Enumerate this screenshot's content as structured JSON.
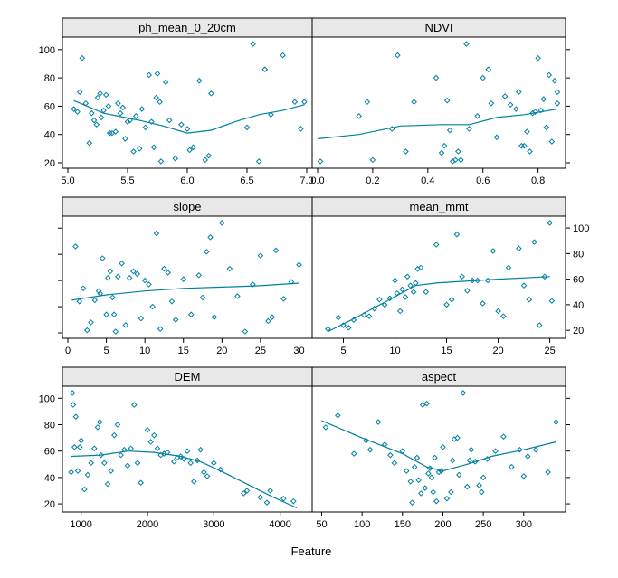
{
  "figure": {
    "xlabel": "Feature",
    "colors": {
      "points": "#0080a0",
      "smooth": "#0080a0",
      "strip": "#e8e8e8",
      "frame": "#000000"
    }
  },
  "chart_data": [
    {
      "type": "scatter",
      "title": "ph_mean_0_20cm",
      "xlim": [
        5.0,
        7.0
      ],
      "ylim": [
        20,
        105
      ],
      "x_ticks": [
        "5.0",
        "5.5",
        "6.0",
        "6.5",
        "7.0"
      ],
      "y_ticks": [
        "20",
        "40",
        "60",
        "80",
        "100"
      ],
      "points": [
        [
          5.05,
          58
        ],
        [
          5.08,
          56
        ],
        [
          5.1,
          70
        ],
        [
          5.12,
          94
        ],
        [
          5.15,
          62
        ],
        [
          5.18,
          34
        ],
        [
          5.2,
          55
        ],
        [
          5.22,
          50
        ],
        [
          5.24,
          47
        ],
        [
          5.25,
          66
        ],
        [
          5.27,
          69
        ],
        [
          5.28,
          52
        ],
        [
          5.3,
          57
        ],
        [
          5.32,
          68
        ],
        [
          5.34,
          60
        ],
        [
          5.35,
          41
        ],
        [
          5.37,
          41
        ],
        [
          5.4,
          42
        ],
        [
          5.42,
          62
        ],
        [
          5.44,
          55
        ],
        [
          5.46,
          59
        ],
        [
          5.48,
          37
        ],
        [
          5.5,
          49
        ],
        [
          5.52,
          50
        ],
        [
          5.55,
          28
        ],
        [
          5.57,
          53
        ],
        [
          5.6,
          30
        ],
        [
          5.62,
          58
        ],
        [
          5.65,
          45
        ],
        [
          5.68,
          82
        ],
        [
          5.7,
          49
        ],
        [
          5.72,
          31
        ],
        [
          5.74,
          66
        ],
        [
          5.75,
          83
        ],
        [
          5.77,
          63
        ],
        [
          5.78,
          21
        ],
        [
          5.82,
          77
        ],
        [
          5.85,
          50
        ],
        [
          5.9,
          23
        ],
        [
          5.95,
          47
        ],
        [
          6.0,
          44
        ],
        [
          6.02,
          29
        ],
        [
          6.05,
          31
        ],
        [
          6.1,
          78
        ],
        [
          6.15,
          22
        ],
        [
          6.18,
          25
        ],
        [
          6.2,
          69
        ],
        [
          6.5,
          45
        ],
        [
          6.55,
          104
        ],
        [
          6.6,
          21
        ],
        [
          6.65,
          86
        ],
        [
          6.7,
          54
        ],
        [
          6.8,
          96
        ],
        [
          6.9,
          63
        ],
        [
          6.95,
          44
        ],
        [
          6.98,
          63
        ]
      ],
      "smooth": [
        [
          5.05,
          64
        ],
        [
          5.3,
          55
        ],
        [
          5.6,
          50
        ],
        [
          5.8,
          46
        ],
        [
          6.0,
          41
        ],
        [
          6.2,
          43
        ],
        [
          6.4,
          49
        ],
        [
          6.6,
          54
        ],
        [
          6.8,
          57
        ],
        [
          6.98,
          61
        ]
      ]
    },
    {
      "type": "scatter",
      "title": "NDVI",
      "xlim": [
        0.0,
        0.88
      ],
      "ylim": [
        20,
        105
      ],
      "x_ticks": [
        "0.0",
        "0.2",
        "0.4",
        "0.6",
        "0.8"
      ],
      "y_ticks": [
        "20",
        "40",
        "60",
        "80",
        "100"
      ],
      "points": [
        [
          0.01,
          21
        ],
        [
          0.15,
          53
        ],
        [
          0.18,
          63
        ],
        [
          0.2,
          22
        ],
        [
          0.27,
          44
        ],
        [
          0.29,
          96
        ],
        [
          0.32,
          28
        ],
        [
          0.35,
          63
        ],
        [
          0.43,
          80
        ],
        [
          0.45,
          27
        ],
        [
          0.46,
          32
        ],
        [
          0.47,
          64
        ],
        [
          0.48,
          43
        ],
        [
          0.49,
          21
        ],
        [
          0.5,
          22
        ],
        [
          0.51,
          28
        ],
        [
          0.52,
          22
        ],
        [
          0.54,
          104
        ],
        [
          0.55,
          44
        ],
        [
          0.58,
          53
        ],
        [
          0.6,
          80
        ],
        [
          0.62,
          86
        ],
        [
          0.63,
          62
        ],
        [
          0.65,
          38
        ],
        [
          0.68,
          67
        ],
        [
          0.7,
          61
        ],
        [
          0.72,
          58
        ],
        [
          0.73,
          70
        ],
        [
          0.74,
          32
        ],
        [
          0.75,
          32
        ],
        [
          0.76,
          42
        ],
        [
          0.77,
          28
        ],
        [
          0.78,
          55
        ],
        [
          0.79,
          56
        ],
        [
          0.8,
          94
        ],
        [
          0.81,
          57
        ],
        [
          0.82,
          65
        ],
        [
          0.83,
          45
        ],
        [
          0.84,
          82
        ],
        [
          0.85,
          35
        ],
        [
          0.86,
          78
        ],
        [
          0.87,
          70
        ],
        [
          0.87,
          62
        ]
      ],
      "smooth": [
        [
          0.0,
          37
        ],
        [
          0.15,
          40
        ],
        [
          0.3,
          46
        ],
        [
          0.45,
          47
        ],
        [
          0.55,
          47
        ],
        [
          0.65,
          52
        ],
        [
          0.75,
          54
        ],
        [
          0.87,
          58
        ]
      ]
    },
    {
      "type": "scatter",
      "title": "slope",
      "xlim": [
        0,
        31
      ],
      "ylim": [
        20,
        105
      ],
      "x_ticks": [
        "0",
        "5",
        "10",
        "15",
        "20",
        "25",
        "30"
      ],
      "y_ticks": [],
      "points": [
        [
          1,
          86
        ],
        [
          1.5,
          44
        ],
        [
          2,
          54
        ],
        [
          2.5,
          22
        ],
        [
          3,
          28
        ],
        [
          3.5,
          45
        ],
        [
          4,
          52
        ],
        [
          4.2,
          50
        ],
        [
          4.5,
          77
        ],
        [
          5,
          34
        ],
        [
          5.2,
          62
        ],
        [
          5.5,
          67
        ],
        [
          5.8,
          47
        ],
        [
          6,
          34
        ],
        [
          6.2,
          21
        ],
        [
          6.5,
          63
        ],
        [
          7,
          73
        ],
        [
          7.5,
          26
        ],
        [
          8,
          62
        ],
        [
          8.5,
          67
        ],
        [
          9,
          65
        ],
        [
          9.5,
          31
        ],
        [
          10,
          60
        ],
        [
          10.5,
          57
        ],
        [
          11,
          40
        ],
        [
          11.5,
          96
        ],
        [
          12,
          23
        ],
        [
          12.5,
          69
        ],
        [
          13,
          66
        ],
        [
          13.5,
          44
        ],
        [
          14,
          30
        ],
        [
          15,
          61
        ],
        [
          16,
          34
        ],
        [
          17,
          64
        ],
        [
          17.5,
          47
        ],
        [
          18,
          82
        ],
        [
          18.5,
          93
        ],
        [
          19,
          32
        ],
        [
          20,
          104
        ],
        [
          21,
          69
        ],
        [
          22,
          48
        ],
        [
          23,
          21
        ],
        [
          24,
          57
        ],
        [
          25,
          79
        ],
        [
          26,
          29
        ],
        [
          26.5,
          32
        ],
        [
          27,
          83
        ],
        [
          28,
          46
        ],
        [
          29,
          59
        ],
        [
          30,
          72
        ]
      ],
      "smooth": [
        [
          0.5,
          45
        ],
        [
          5,
          49
        ],
        [
          10,
          52
        ],
        [
          15,
          54
        ],
        [
          20,
          55
        ],
        [
          25,
          56
        ],
        [
          30,
          58
        ]
      ]
    },
    {
      "type": "scatter",
      "title": "mean_mmt",
      "xlim": [
        2.5,
        26
      ],
      "ylim": [
        18,
        105
      ],
      "x_ticks": [
        "5",
        "10",
        "15",
        "20",
        "25"
      ],
      "y_ticks": [
        "20",
        "40",
        "60",
        "80",
        "100"
      ],
      "points": [
        [
          3.5,
          21
        ],
        [
          4.5,
          30
        ],
        [
          5,
          24
        ],
        [
          5.5,
          22
        ],
        [
          6,
          28
        ],
        [
          7,
          32
        ],
        [
          7.5,
          31
        ],
        [
          8,
          37
        ],
        [
          8.5,
          44
        ],
        [
          9,
          40
        ],
        [
          9.5,
          45
        ],
        [
          10,
          59
        ],
        [
          10.2,
          49
        ],
        [
          10.5,
          35
        ],
        [
          10.7,
          52
        ],
        [
          11,
          46
        ],
        [
          11.2,
          62
        ],
        [
          11.5,
          55
        ],
        [
          11.8,
          50
        ],
        [
          12,
          57
        ],
        [
          12.2,
          68
        ],
        [
          12.5,
          69
        ],
        [
          13,
          50
        ],
        [
          14,
          87
        ],
        [
          15,
          40
        ],
        [
          15.5,
          44
        ],
        [
          16,
          95
        ],
        [
          16.5,
          62
        ],
        [
          17,
          51
        ],
        [
          17.5,
          59
        ],
        [
          18,
          59
        ],
        [
          18.5,
          41
        ],
        [
          19,
          59
        ],
        [
          19.5,
          82
        ],
        [
          20,
          35
        ],
        [
          20.5,
          31
        ],
        [
          21,
          69
        ],
        [
          22,
          84
        ],
        [
          22.5,
          55
        ],
        [
          23,
          44
        ],
        [
          23.5,
          89
        ],
        [
          24,
          24
        ],
        [
          24.5,
          62
        ],
        [
          25,
          104
        ],
        [
          25.2,
          43
        ]
      ],
      "smooth": [
        [
          3.5,
          19
        ],
        [
          6,
          29
        ],
        [
          9,
          42
        ],
        [
          12,
          55
        ],
        [
          14,
          57
        ],
        [
          16,
          58
        ],
        [
          20,
          60
        ],
        [
          25,
          62
        ]
      ]
    },
    {
      "type": "scatter",
      "title": "DEM",
      "xlim": [
        800,
        4400
      ],
      "ylim": [
        18,
        105
      ],
      "x_ticks": [
        "1000",
        "2000",
        "3000",
        "4000"
      ],
      "y_ticks": [
        "20",
        "40",
        "60",
        "80",
        "100"
      ],
      "points": [
        [
          850,
          44
        ],
        [
          870,
          104
        ],
        [
          880,
          95
        ],
        [
          900,
          63
        ],
        [
          920,
          86
        ],
        [
          950,
          45
        ],
        [
          980,
          63
        ],
        [
          1000,
          68
        ],
        [
          1050,
          31
        ],
        [
          1100,
          42
        ],
        [
          1150,
          51
        ],
        [
          1200,
          62
        ],
        [
          1250,
          78
        ],
        [
          1280,
          82
        ],
        [
          1300,
          57
        ],
        [
          1350,
          51
        ],
        [
          1400,
          35
        ],
        [
          1450,
          45
        ],
        [
          1500,
          72
        ],
        [
          1550,
          80
        ],
        [
          1600,
          57
        ],
        [
          1650,
          61
        ],
        [
          1700,
          49
        ],
        [
          1750,
          62
        ],
        [
          1800,
          95
        ],
        [
          1850,
          51
        ],
        [
          1900,
          36
        ],
        [
          2000,
          76
        ],
        [
          2050,
          67
        ],
        [
          2100,
          72
        ],
        [
          2150,
          62
        ],
        [
          2200,
          57
        ],
        [
          2250,
          58
        ],
        [
          2300,
          59
        ],
        [
          2400,
          52
        ],
        [
          2450,
          55
        ],
        [
          2500,
          56
        ],
        [
          2550,
          54
        ],
        [
          2600,
          60
        ],
        [
          2650,
          51
        ],
        [
          2700,
          37
        ],
        [
          2750,
          53
        ],
        [
          2800,
          61
        ],
        [
          2850,
          44
        ],
        [
          2900,
          41
        ],
        [
          3000,
          51
        ],
        [
          3100,
          46
        ],
        [
          3450,
          28
        ],
        [
          3500,
          30
        ],
        [
          3700,
          25
        ],
        [
          3800,
          21
        ],
        [
          3850,
          30
        ],
        [
          4050,
          24
        ],
        [
          4200,
          22
        ]
      ],
      "smooth": [
        [
          850,
          56
        ],
        [
          1300,
          57
        ],
        [
          1700,
          60
        ],
        [
          2100,
          59
        ],
        [
          2500,
          56
        ],
        [
          2800,
          52
        ],
        [
          3100,
          45
        ],
        [
          3500,
          35
        ],
        [
          3900,
          25
        ],
        [
          4250,
          17
        ]
      ]
    },
    {
      "type": "scatter",
      "title": "aspect",
      "xlim": [
        45,
        345
      ],
      "ylim": [
        18,
        105
      ],
      "x_ticks": [
        "50",
        "100",
        "150",
        "200",
        "250",
        "300"
      ],
      "y_ticks": [],
      "points": [
        [
          55,
          78
        ],
        [
          70,
          87
        ],
        [
          90,
          58
        ],
        [
          105,
          68
        ],
        [
          110,
          61
        ],
        [
          120,
          82
        ],
        [
          128,
          65
        ],
        [
          135,
          57
        ],
        [
          140,
          51
        ],
        [
          150,
          60
        ],
        [
          155,
          45
        ],
        [
          160,
          37
        ],
        [
          162,
          21
        ],
        [
          165,
          48
        ],
        [
          168,
          55
        ],
        [
          170,
          38
        ],
        [
          173,
          28
        ],
        [
          175,
          95
        ],
        [
          178,
          32
        ],
        [
          180,
          96
        ],
        [
          182,
          43
        ],
        [
          184,
          47
        ],
        [
          186,
          40
        ],
        [
          188,
          29
        ],
        [
          190,
          55
        ],
        [
          192,
          22
        ],
        [
          195,
          44
        ],
        [
          198,
          45
        ],
        [
          200,
          63
        ],
        [
          205,
          24
        ],
        [
          210,
          29
        ],
        [
          212,
          53
        ],
        [
          214,
          69
        ],
        [
          218,
          70
        ],
        [
          220,
          42
        ],
        [
          225,
          104
        ],
        [
          230,
          33
        ],
        [
          233,
          53
        ],
        [
          235,
          61
        ],
        [
          240,
          52
        ],
        [
          245,
          34
        ],
        [
          248,
          29
        ],
        [
          250,
          40
        ],
        [
          255,
          54
        ],
        [
          265,
          60
        ],
        [
          275,
          71
        ],
        [
          285,
          48
        ],
        [
          295,
          61
        ],
        [
          300,
          41
        ],
        [
          305,
          56
        ],
        [
          315,
          61
        ],
        [
          330,
          44
        ],
        [
          340,
          82
        ]
      ],
      "smooth": [
        [
          50,
          83
        ],
        [
          100,
          70
        ],
        [
          150,
          58
        ],
        [
          180,
          48
        ],
        [
          200,
          45
        ],
        [
          230,
          50
        ],
        [
          260,
          56
        ],
        [
          300,
          61
        ],
        [
          340,
          67
        ]
      ]
    }
  ]
}
